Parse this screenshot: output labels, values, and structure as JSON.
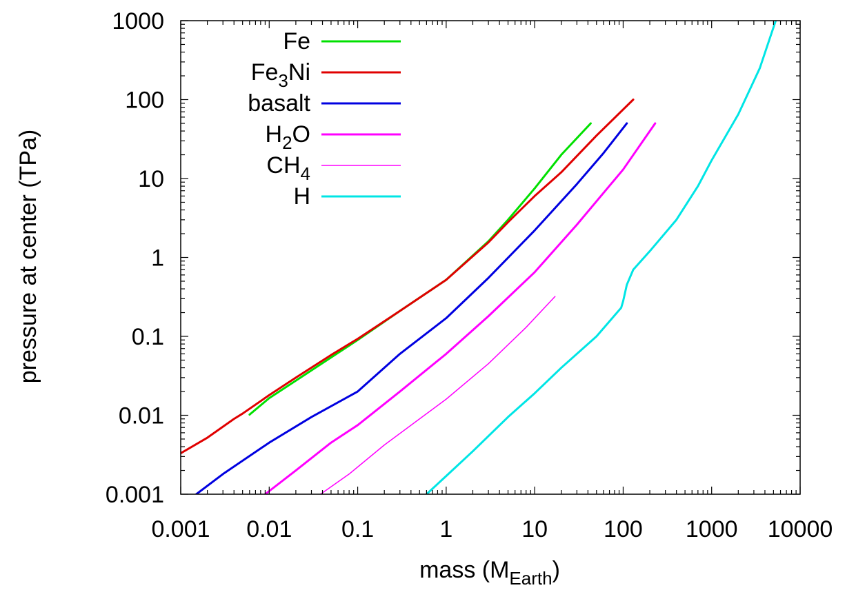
{
  "chart_data": {
    "type": "line",
    "title": "",
    "xlabel": {
      "main": "mass (M",
      "sub": "Earth",
      "end": ")"
    },
    "ylabel": "pressure at center (TPa)",
    "xscale": "log",
    "yscale": "log",
    "xlim": [
      0.001,
      10000
    ],
    "ylim": [
      0.001,
      1000
    ],
    "x_ticks": [
      {
        "value": 0.001,
        "label": "0.001"
      },
      {
        "value": 0.01,
        "label": "0.01"
      },
      {
        "value": 0.1,
        "label": "0.1"
      },
      {
        "value": 1,
        "label": "1"
      },
      {
        "value": 10,
        "label": "10"
      },
      {
        "value": 100,
        "label": "100"
      },
      {
        "value": 1000,
        "label": "1000"
      },
      {
        "value": 10000,
        "label": "10000"
      }
    ],
    "y_ticks": [
      {
        "value": 0.001,
        "label": "0.001"
      },
      {
        "value": 0.01,
        "label": "0.01"
      },
      {
        "value": 0.1,
        "label": "0.1"
      },
      {
        "value": 1,
        "label": "1"
      },
      {
        "value": 10,
        "label": "10"
      },
      {
        "value": 100,
        "label": "100"
      },
      {
        "value": 1000,
        "label": "1000"
      }
    ],
    "grid": false,
    "legend_position": "top-left",
    "series": [
      {
        "name": "Fe",
        "name_main": "Fe",
        "name_sub": "",
        "name_end": "",
        "color": "#00e000",
        "width": 3,
        "points": [
          [
            0.006,
            0.0102
          ],
          [
            0.01,
            0.0165
          ],
          [
            0.02,
            0.0275
          ],
          [
            0.05,
            0.054
          ],
          [
            0.1,
            0.09
          ],
          [
            0.3,
            0.21
          ],
          [
            1,
            0.52
          ],
          [
            3,
            1.6
          ],
          [
            5,
            3.0
          ],
          [
            10,
            7.5
          ],
          [
            20,
            20
          ],
          [
            43,
            50
          ]
        ]
      },
      {
        "name": "Fe3Ni",
        "name_main": "Fe",
        "name_sub": "3",
        "name_end": "Ni",
        "color": "#e00000",
        "width": 3,
        "points": [
          [
            0.001,
            0.0033
          ],
          [
            0.002,
            0.0052
          ],
          [
            0.004,
            0.009
          ],
          [
            0.005,
            0.0105
          ],
          [
            0.01,
            0.018
          ],
          [
            0.02,
            0.03
          ],
          [
            0.05,
            0.058
          ],
          [
            0.1,
            0.093
          ],
          [
            0.3,
            0.21
          ],
          [
            1,
            0.52
          ],
          [
            3,
            1.55
          ],
          [
            5,
            2.8
          ],
          [
            10,
            6.0
          ],
          [
            20,
            12
          ],
          [
            50,
            35
          ],
          [
            130,
            100
          ]
        ]
      },
      {
        "name": "basalt",
        "name_main": "basalt",
        "name_sub": "",
        "name_end": "",
        "color": "#0000e0",
        "width": 3,
        "points": [
          [
            0.0015,
            0.001
          ],
          [
            0.003,
            0.0018
          ],
          [
            0.01,
            0.0045
          ],
          [
            0.03,
            0.0095
          ],
          [
            0.1,
            0.02
          ],
          [
            0.3,
            0.06
          ],
          [
            1,
            0.17
          ],
          [
            3,
            0.55
          ],
          [
            10,
            2.2
          ],
          [
            30,
            8.5
          ],
          [
            60,
            21
          ],
          [
            110,
            50
          ]
        ]
      },
      {
        "name": "H2O",
        "name_main": "H",
        "name_sub": "2",
        "name_end": "O",
        "color": "#ff00ff",
        "width": 3,
        "points": [
          [
            0.009,
            0.001
          ],
          [
            0.02,
            0.002
          ],
          [
            0.05,
            0.0045
          ],
          [
            0.1,
            0.0075
          ],
          [
            0.3,
            0.02
          ],
          [
            1,
            0.06
          ],
          [
            3,
            0.18
          ],
          [
            10,
            0.65
          ],
          [
            30,
            2.6
          ],
          [
            100,
            13
          ],
          [
            230,
            50
          ]
        ]
      },
      {
        "name": "CH4",
        "name_main": "CH",
        "name_sub": "4",
        "name_end": "",
        "color": "#ff00ff",
        "width": 1.5,
        "points": [
          [
            0.038,
            0.001
          ],
          [
            0.08,
            0.0018
          ],
          [
            0.2,
            0.0042
          ],
          [
            0.5,
            0.009
          ],
          [
            1,
            0.016
          ],
          [
            3,
            0.045
          ],
          [
            8,
            0.13
          ],
          [
            17,
            0.32
          ]
        ]
      },
      {
        "name": "H",
        "name_main": "H",
        "name_sub": "",
        "name_end": "",
        "color": "#00e5e5",
        "width": 3,
        "points": [
          [
            0.6,
            0.001
          ],
          [
            1,
            0.0017
          ],
          [
            2,
            0.0035
          ],
          [
            5,
            0.0095
          ],
          [
            10,
            0.019
          ],
          [
            20,
            0.04
          ],
          [
            50,
            0.1
          ],
          [
            95,
            0.23
          ],
          [
            100,
            0.28
          ],
          [
            110,
            0.45
          ],
          [
            130,
            0.7
          ],
          [
            200,
            1.2
          ],
          [
            400,
            3.0
          ],
          [
            700,
            8
          ],
          [
            1000,
            17
          ],
          [
            2000,
            65
          ],
          [
            3500,
            250
          ],
          [
            5300,
            1000
          ]
        ]
      }
    ]
  }
}
